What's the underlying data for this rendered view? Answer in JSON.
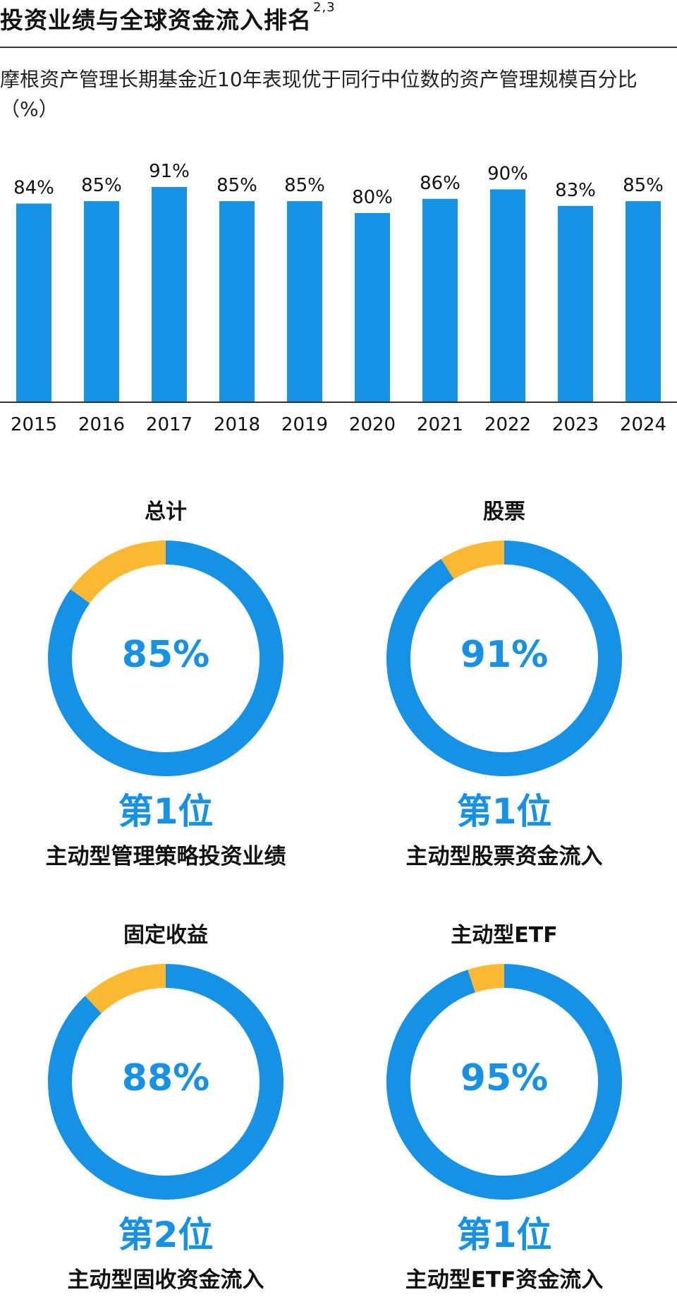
{
  "header": {
    "title": "投资业绩与全球资金流入排名",
    "title_superscript": "2,3",
    "subtitle": "摩根资产管理长期基金近10年表现优于同行中位数的资产管理规模百分比（%）"
  },
  "colors": {
    "primary": "#1591e6",
    "secondary": "#fbb933",
    "axis": "#333333"
  },
  "chart_data": [
    {
      "type": "bar",
      "categories": [
        "2015",
        "2016",
        "2017",
        "2018",
        "2019",
        "2020",
        "2021",
        "2022",
        "2023",
        "2024"
      ],
      "values": [
        84,
        85,
        91,
        85,
        85,
        80,
        86,
        90,
        83,
        85
      ],
      "value_labels": [
        "84%",
        "85%",
        "91%",
        "85%",
        "85%",
        "80%",
        "86%",
        "90%",
        "83%",
        "85%"
      ],
      "ylim": [
        0,
        91
      ]
    },
    {
      "type": "pie",
      "title": "总计",
      "values": [
        85,
        15
      ],
      "center_label": "85%"
    },
    {
      "type": "pie",
      "title": "股票",
      "values": [
        91,
        9
      ],
      "center_label": "91%"
    },
    {
      "type": "pie",
      "title": "固定收益",
      "values": [
        88,
        12
      ],
      "center_label": "88%"
    },
    {
      "type": "pie",
      "title": "主动型ETF",
      "values": [
        95,
        5
      ],
      "center_label": "95%"
    }
  ],
  "donuts": [
    {
      "label": "总计",
      "rank": "第1位",
      "caption": "主动型管理策略投资业绩"
    },
    {
      "label": "股票",
      "rank": "第1位",
      "caption": "主动型股票资金流入"
    },
    {
      "label": "固定收益",
      "rank": "第2位",
      "caption": "主动型固收资金流入"
    },
    {
      "label": "主动型ETF",
      "rank": "第1位",
      "caption": "主动型ETF资金流入"
    }
  ]
}
